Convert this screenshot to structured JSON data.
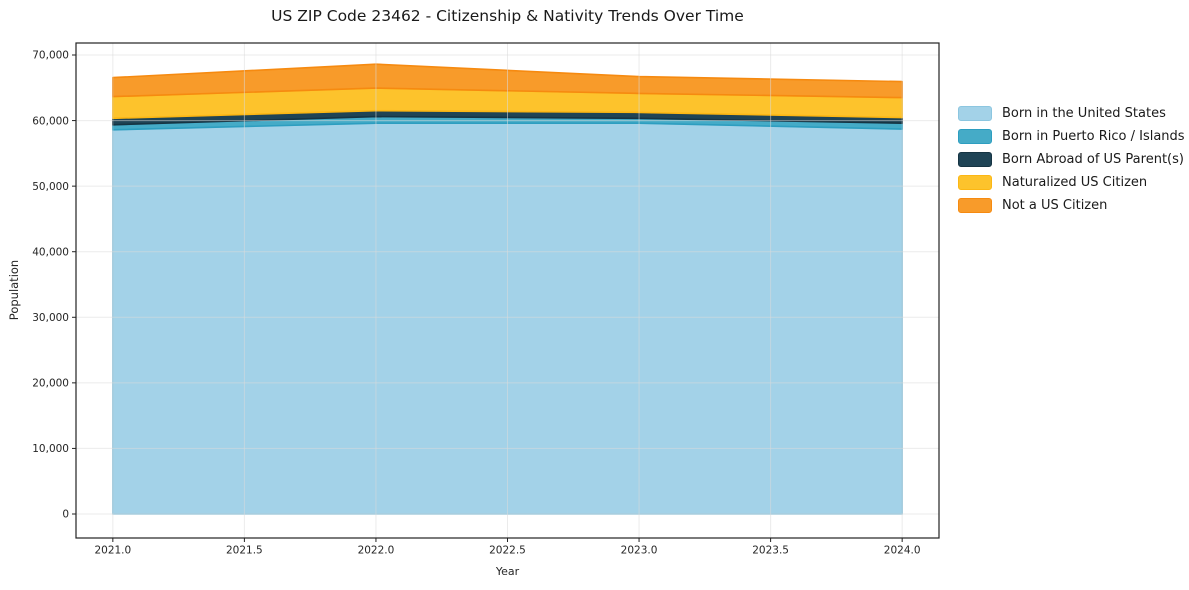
{
  "chart_data": {
    "type": "area",
    "stacked": true,
    "title": "US ZIP Code 23462 - Citizenship & Nativity Trends Over Time",
    "xlabel": "Year",
    "ylabel": "Population",
    "x": [
      2021,
      2022,
      2023,
      2024
    ],
    "series": [
      {
        "name": "Born in the United States",
        "values": [
          58600,
          59600,
          59600,
          58700
        ],
        "fill": "#a3d2e8",
        "edge": "#8cc6e0"
      },
      {
        "name": "Born in Puerto Rico / Islands",
        "values": [
          750,
          1000,
          750,
          900
        ],
        "fill": "#45abc7",
        "edge": "#2d9ec0"
      },
      {
        "name": "Born Abroad of US Parent(s)",
        "values": [
          1000,
          900,
          900,
          850
        ],
        "fill": "#1f4456",
        "edge": "#163443"
      },
      {
        "name": "Naturalized US Citizen",
        "values": [
          3300,
          3450,
          2900,
          3050
        ],
        "fill": "#fdc32c",
        "edge": "#fcb714"
      },
      {
        "name": "Not a US Citizen",
        "values": [
          2900,
          3650,
          2550,
          2450
        ],
        "fill": "#f89b2a",
        "edge": "#f68a10"
      }
    ],
    "xlim": [
      2020.86,
      2024.14
    ],
    "ylim": [
      -3660,
      71830
    ],
    "xticks": [
      2021.0,
      2021.5,
      2022.0,
      2022.5,
      2023.0,
      2023.5,
      2024.0
    ],
    "xtick_labels": [
      "2021.0",
      "2021.5",
      "2022.0",
      "2022.5",
      "2023.0",
      "2023.5",
      "2024.0"
    ],
    "yticks": [
      0,
      10000,
      20000,
      30000,
      40000,
      50000,
      60000,
      70000
    ],
    "ytick_labels": [
      "0",
      "10,000",
      "20,000",
      "30,000",
      "40,000",
      "50,000",
      "60,000",
      "70,000"
    ],
    "grid": true,
    "legend_position": "right of plot",
    "colors": {
      "background": "#ffffff",
      "spine": "#222222",
      "tick_text": "#262626",
      "gridline": "rgba(219,219,219,0.55)"
    }
  }
}
